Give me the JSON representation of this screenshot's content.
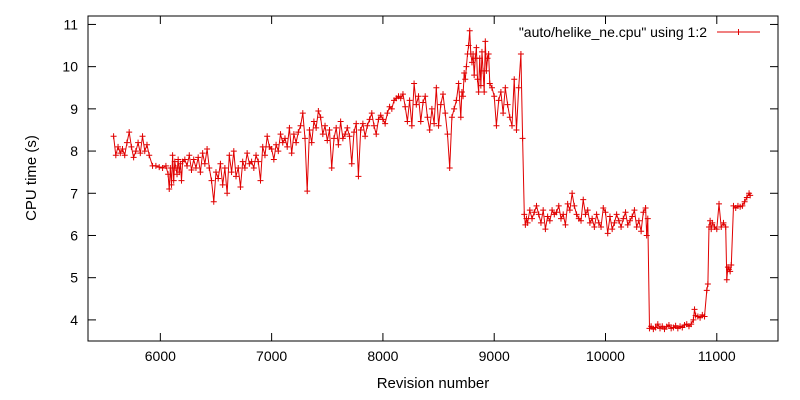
{
  "chart_data": {
    "type": "line",
    "title": "",
    "xlabel": "Revision number",
    "ylabel": "CPU time (s)",
    "xlim": [
      5350,
      11550
    ],
    "ylim": [
      3.5,
      11.2
    ],
    "xticks": [
      6000,
      7000,
      8000,
      9000,
      10000,
      11000
    ],
    "yticks": [
      4,
      5,
      6,
      7,
      8,
      9,
      10,
      11
    ],
    "grid": false,
    "legend_position": "top-right",
    "line_color": "#e00000",
    "marker": "plus",
    "series": [
      {
        "name": "\"auto/helike_ne.cpu\" using 1:2",
        "points": [
          [
            5580,
            8.35
          ],
          [
            5600,
            7.9
          ],
          [
            5620,
            8.1
          ],
          [
            5640,
            7.95
          ],
          [
            5660,
            8.05
          ],
          [
            5680,
            7.9
          ],
          [
            5700,
            8.2
          ],
          [
            5720,
            8.45
          ],
          [
            5740,
            8.1
          ],
          [
            5760,
            7.85
          ],
          [
            5780,
            8.0
          ],
          [
            5800,
            8.2
          ],
          [
            5820,
            7.95
          ],
          [
            5840,
            8.35
          ],
          [
            5860,
            8.0
          ],
          [
            5880,
            8.15
          ],
          [
            5900,
            7.9
          ],
          [
            5930,
            7.65
          ],
          [
            5960,
            7.65
          ],
          [
            5990,
            7.62
          ],
          [
            6020,
            7.6
          ],
          [
            6050,
            7.65
          ],
          [
            6070,
            7.45
          ],
          [
            6080,
            7.1
          ],
          [
            6090,
            7.6
          ],
          [
            6100,
            7.2
          ],
          [
            6110,
            7.9
          ],
          [
            6120,
            7.3
          ],
          [
            6130,
            7.75
          ],
          [
            6140,
            7.6
          ],
          [
            6150,
            7.45
          ],
          [
            6160,
            7.8
          ],
          [
            6170,
            7.5
          ],
          [
            6180,
            7.7
          ],
          [
            6190,
            7.3
          ],
          [
            6200,
            7.75
          ],
          [
            6220,
            7.8
          ],
          [
            6240,
            7.65
          ],
          [
            6260,
            7.9
          ],
          [
            6280,
            7.55
          ],
          [
            6300,
            7.8
          ],
          [
            6320,
            7.6
          ],
          [
            6340,
            7.85
          ],
          [
            6360,
            7.5
          ],
          [
            6380,
            7.95
          ],
          [
            6400,
            7.7
          ],
          [
            6420,
            8.05
          ],
          [
            6440,
            7.6
          ],
          [
            6460,
            7.3
          ],
          [
            6480,
            6.8
          ],
          [
            6500,
            7.5
          ],
          [
            6520,
            7.35
          ],
          [
            6540,
            7.7
          ],
          [
            6560,
            7.2
          ],
          [
            6580,
            7.6
          ],
          [
            6600,
            7.0
          ],
          [
            6620,
            7.9
          ],
          [
            6640,
            7.5
          ],
          [
            6660,
            8.0
          ],
          [
            6680,
            7.4
          ],
          [
            6700,
            7.6
          ],
          [
            6720,
            7.15
          ],
          [
            6740,
            7.75
          ],
          [
            6760,
            7.6
          ],
          [
            6780,
            7.95
          ],
          [
            6800,
            7.7
          ],
          [
            6820,
            7.75
          ],
          [
            6840,
            7.6
          ],
          [
            6860,
            7.9
          ],
          [
            6880,
            7.75
          ],
          [
            6900,
            7.3
          ],
          [
            6920,
            8.1
          ],
          [
            6940,
            7.9
          ],
          [
            6960,
            8.35
          ],
          [
            6980,
            8.1
          ],
          [
            7000,
            8.05
          ],
          [
            7020,
            7.8
          ],
          [
            7040,
            8.15
          ],
          [
            7060,
            8.0
          ],
          [
            7080,
            8.4
          ],
          [
            7100,
            8.2
          ],
          [
            7120,
            8.3
          ],
          [
            7140,
            8.1
          ],
          [
            7160,
            8.55
          ],
          [
            7180,
            7.95
          ],
          [
            7200,
            8.4
          ],
          [
            7220,
            8.2
          ],
          [
            7240,
            8.45
          ],
          [
            7260,
            8.6
          ],
          [
            7280,
            8.9
          ],
          [
            7300,
            8.3
          ],
          [
            7320,
            7.05
          ],
          [
            7340,
            8.5
          ],
          [
            7360,
            8.2
          ],
          [
            7380,
            8.7
          ],
          [
            7400,
            8.55
          ],
          [
            7420,
            8.95
          ],
          [
            7440,
            8.8
          ],
          [
            7460,
            8.4
          ],
          [
            7480,
            8.6
          ],
          [
            7500,
            8.25
          ],
          [
            7520,
            8.5
          ],
          [
            7540,
            7.6
          ],
          [
            7560,
            8.3
          ],
          [
            7580,
            8.55
          ],
          [
            7600,
            8.15
          ],
          [
            7620,
            8.7
          ],
          [
            7640,
            8.3
          ],
          [
            7660,
            8.4
          ],
          [
            7680,
            8.55
          ],
          [
            7700,
            8.35
          ],
          [
            7720,
            7.7
          ],
          [
            7740,
            8.45
          ],
          [
            7760,
            8.65
          ],
          [
            7780,
            7.4
          ],
          [
            7800,
            8.5
          ],
          [
            7820,
            8.65
          ],
          [
            7840,
            8.35
          ],
          [
            7860,
            8.6
          ],
          [
            7880,
            8.75
          ],
          [
            7900,
            8.9
          ],
          [
            7920,
            8.6
          ],
          [
            7940,
            8.4
          ],
          [
            7960,
            8.75
          ],
          [
            7980,
            8.85
          ],
          [
            8000,
            8.75
          ],
          [
            8020,
            8.65
          ],
          [
            8040,
            8.9
          ],
          [
            8060,
            9.05
          ],
          [
            8080,
            9.0
          ],
          [
            8100,
            9.2
          ],
          [
            8120,
            9.25
          ],
          [
            8140,
            9.3
          ],
          [
            8160,
            9.25
          ],
          [
            8180,
            9.35
          ],
          [
            8200,
            9.05
          ],
          [
            8220,
            8.7
          ],
          [
            8240,
            9.2
          ],
          [
            8260,
            8.6
          ],
          [
            8280,
            9.6
          ],
          [
            8300,
            9.1
          ],
          [
            8320,
            9.3
          ],
          [
            8340,
            8.7
          ],
          [
            8360,
            9.15
          ],
          [
            8380,
            9.3
          ],
          [
            8400,
            8.8
          ],
          [
            8420,
            8.5
          ],
          [
            8440,
            9.0
          ],
          [
            8460,
            8.65
          ],
          [
            8480,
            9.5
          ],
          [
            8500,
            8.6
          ],
          [
            8520,
            9.1
          ],
          [
            8540,
            9.35
          ],
          [
            8560,
            8.9
          ],
          [
            8580,
            8.4
          ],
          [
            8600,
            7.6
          ],
          [
            8620,
            8.8
          ],
          [
            8640,
            9.0
          ],
          [
            8660,
            9.2
          ],
          [
            8680,
            9.6
          ],
          [
            8700,
            8.8
          ],
          [
            8710,
            9.4
          ],
          [
            8720,
            9.3
          ],
          [
            8730,
            9.85
          ],
          [
            8740,
            9.7
          ],
          [
            8750,
            10.0
          ],
          [
            8760,
            10.3
          ],
          [
            8770,
            10.5
          ],
          [
            8780,
            10.85
          ],
          [
            8790,
            10.3
          ],
          [
            8800,
            10.1
          ],
          [
            8810,
            10.3
          ],
          [
            8820,
            9.8
          ],
          [
            8830,
            10.2
          ],
          [
            8840,
            10.45
          ],
          [
            8850,
            9.7
          ],
          [
            8860,
            9.4
          ],
          [
            8870,
            10.2
          ],
          [
            8880,
            9.55
          ],
          [
            8890,
            10.35
          ],
          [
            8900,
            9.9
          ],
          [
            8910,
            9.4
          ],
          [
            8920,
            10.6
          ],
          [
            8930,
            9.9
          ],
          [
            8940,
            10.2
          ],
          [
            8950,
            10.3
          ],
          [
            8960,
            9.6
          ],
          [
            8980,
            9.5
          ],
          [
            9000,
            9.3
          ],
          [
            9020,
            8.6
          ],
          [
            9040,
            9.2
          ],
          [
            9060,
            9.4
          ],
          [
            9080,
            8.9
          ],
          [
            9100,
            9.5
          ],
          [
            9120,
            9.1
          ],
          [
            9140,
            8.8
          ],
          [
            9160,
            8.6
          ],
          [
            9180,
            9.7
          ],
          [
            9200,
            8.5
          ],
          [
            9220,
            9.5
          ],
          [
            9240,
            10.3
          ],
          [
            9255,
            8.3
          ],
          [
            9270,
            6.5
          ],
          [
            9280,
            6.25
          ],
          [
            9290,
            6.4
          ],
          [
            9300,
            6.3
          ],
          [
            9320,
            6.6
          ],
          [
            9340,
            6.4
          ],
          [
            9360,
            6.55
          ],
          [
            9380,
            6.7
          ],
          [
            9400,
            6.5
          ],
          [
            9420,
            6.3
          ],
          [
            9440,
            6.6
          ],
          [
            9460,
            6.15
          ],
          [
            9480,
            6.45
          ],
          [
            9500,
            6.35
          ],
          [
            9520,
            6.6
          ],
          [
            9540,
            6.5
          ],
          [
            9560,
            6.55
          ],
          [
            9580,
            6.7
          ],
          [
            9600,
            6.4
          ],
          [
            9620,
            6.5
          ],
          [
            9640,
            6.25
          ],
          [
            9660,
            6.75
          ],
          [
            9680,
            6.6
          ],
          [
            9700,
            7.0
          ],
          [
            9720,
            6.7
          ],
          [
            9740,
            6.5
          ],
          [
            9760,
            6.4
          ],
          [
            9780,
            6.35
          ],
          [
            9800,
            6.85
          ],
          [
            9820,
            6.5
          ],
          [
            9840,
            6.6
          ],
          [
            9860,
            6.3
          ],
          [
            9880,
            6.4
          ],
          [
            9900,
            6.2
          ],
          [
            9920,
            6.5
          ],
          [
            9940,
            6.3
          ],
          [
            9960,
            6.2
          ],
          [
            9980,
            6.65
          ],
          [
            10000,
            6.55
          ],
          [
            10020,
            6.05
          ],
          [
            10040,
            6.45
          ],
          [
            10060,
            6.15
          ],
          [
            10080,
            6.3
          ],
          [
            10100,
            6.5
          ],
          [
            10120,
            6.35
          ],
          [
            10140,
            6.2
          ],
          [
            10160,
            6.4
          ],
          [
            10180,
            6.55
          ],
          [
            10200,
            6.25
          ],
          [
            10220,
            6.35
          ],
          [
            10240,
            6.45
          ],
          [
            10260,
            6.6
          ],
          [
            10280,
            6.2
          ],
          [
            10300,
            6.35
          ],
          [
            10320,
            6.1
          ],
          [
            10340,
            6.55
          ],
          [
            10360,
            6.65
          ],
          [
            10370,
            6.0
          ],
          [
            10380,
            6.4
          ],
          [
            10395,
            3.8
          ],
          [
            10410,
            3.85
          ],
          [
            10430,
            3.78
          ],
          [
            10450,
            3.82
          ],
          [
            10470,
            3.9
          ],
          [
            10490,
            3.8
          ],
          [
            10510,
            3.85
          ],
          [
            10530,
            3.78
          ],
          [
            10550,
            3.84
          ],
          [
            10570,
            3.88
          ],
          [
            10590,
            3.8
          ],
          [
            10610,
            3.82
          ],
          [
            10630,
            3.86
          ],
          [
            10650,
            3.8
          ],
          [
            10670,
            3.85
          ],
          [
            10690,
            3.82
          ],
          [
            10710,
            3.88
          ],
          [
            10730,
            3.9
          ],
          [
            10750,
            3.85
          ],
          [
            10770,
            3.9
          ],
          [
            10790,
            4.0
          ],
          [
            10800,
            4.25
          ],
          [
            10810,
            4.1
          ],
          [
            10830,
            4.08
          ],
          [
            10850,
            4.05
          ],
          [
            10870,
            4.12
          ],
          [
            10890,
            4.08
          ],
          [
            10910,
            4.7
          ],
          [
            10920,
            4.85
          ],
          [
            10930,
            6.2
          ],
          [
            10940,
            6.35
          ],
          [
            10950,
            6.15
          ],
          [
            10960,
            6.3
          ],
          [
            10980,
            6.2
          ],
          [
            11000,
            6.15
          ],
          [
            11020,
            6.75
          ],
          [
            11040,
            6.2
          ],
          [
            11060,
            6.3
          ],
          [
            11080,
            6.2
          ],
          [
            11090,
            4.95
          ],
          [
            11100,
            5.25
          ],
          [
            11110,
            5.2
          ],
          [
            11120,
            5.15
          ],
          [
            11130,
            5.3
          ],
          [
            11150,
            6.7
          ],
          [
            11170,
            6.65
          ],
          [
            11190,
            6.7
          ],
          [
            11210,
            6.68
          ],
          [
            11230,
            6.7
          ],
          [
            11250,
            6.8
          ],
          [
            11270,
            6.9
          ],
          [
            11290,
            7.0
          ],
          [
            11300,
            6.95
          ]
        ]
      }
    ]
  }
}
